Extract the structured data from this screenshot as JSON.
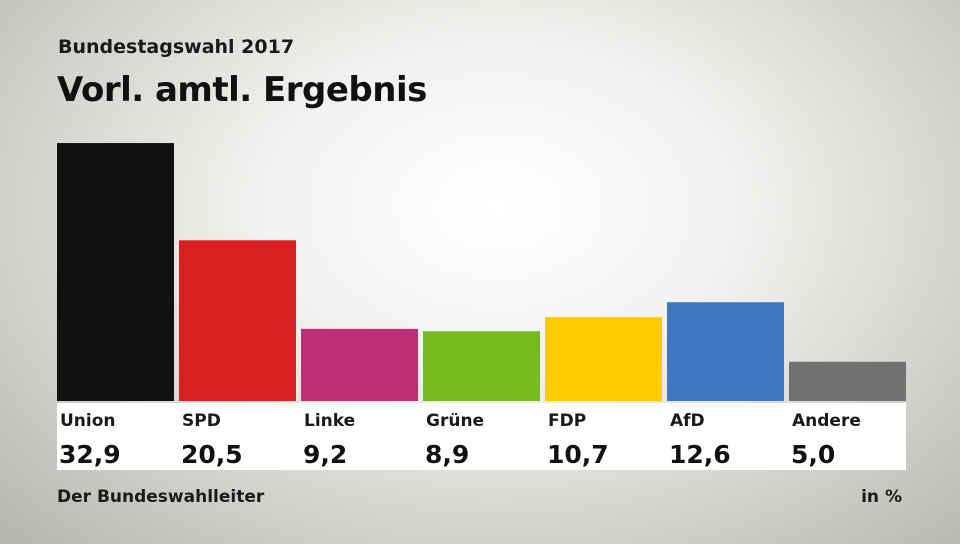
{
  "subtitle": "Bundestagswahl 2017",
  "title": "Vorl. amtl. Ergebnis",
  "source": "Der Bundeswahlleiter",
  "unit": "in %",
  "chart_data": {
    "type": "bar",
    "title": "Vorl. amtl. Ergebnis",
    "subtitle": "Bundestagswahl 2017",
    "xlabel": "",
    "ylabel": "",
    "unit": "in %",
    "grid": false,
    "categories": [
      "Union",
      "SPD",
      "Linke",
      "Grüne",
      "FDP",
      "AfD",
      "Andere"
    ],
    "values": [
      32.9,
      20.5,
      9.2,
      8.9,
      10.7,
      12.6,
      5.0
    ],
    "value_labels": [
      "32,9",
      "20,5",
      "9,2",
      "8,9",
      "10,7",
      "12,6",
      "5,0"
    ],
    "colors": [
      "#111111",
      "#d82020",
      "#be2e74",
      "#79bb1e",
      "#fecb00",
      "#3f77c4",
      "#727274"
    ]
  }
}
